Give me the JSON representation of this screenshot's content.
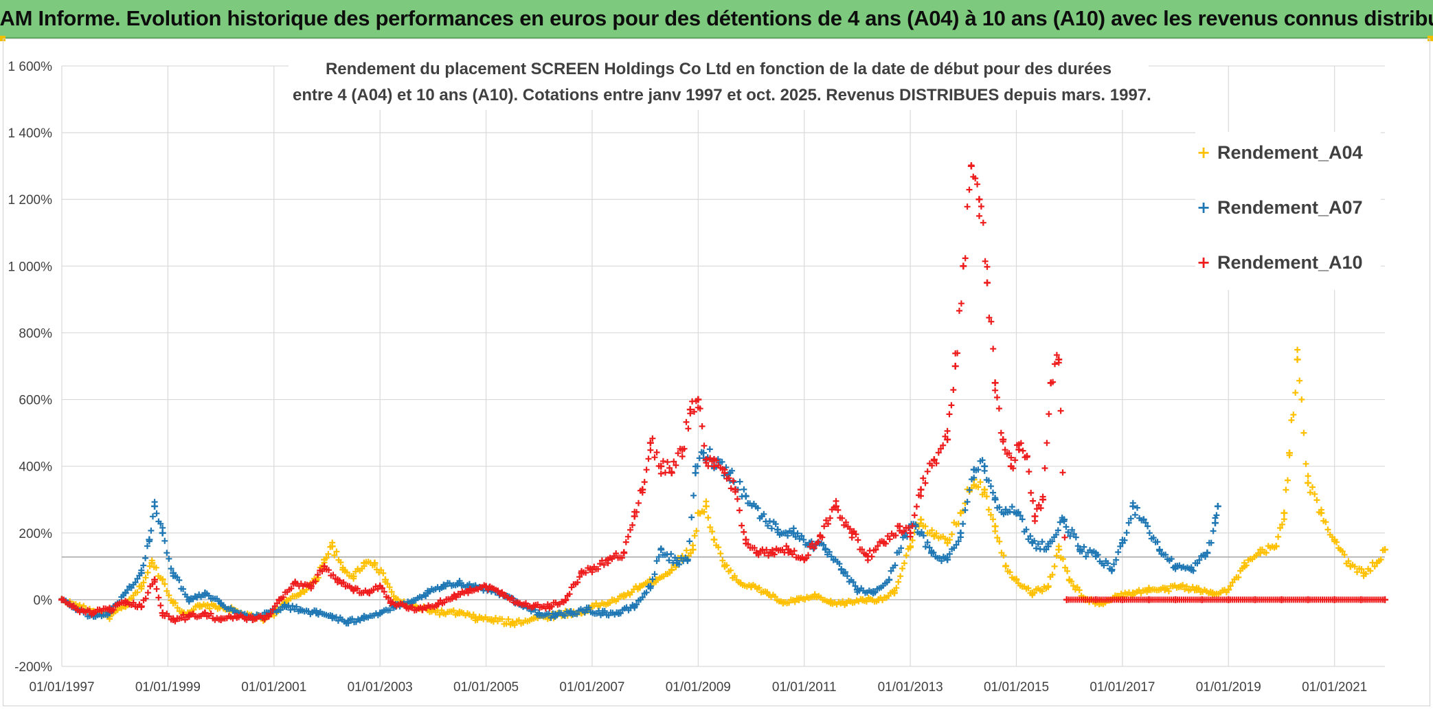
{
  "header": {
    "title": "ADAM Informe. Evolution historique des performances en euros pour des détentions de 4 ans (A04) à 10 ans (A10) avec les revenus connus distribués"
  },
  "chart_data": {
    "type": "scatter",
    "title_line1": "Rendement du placement SCREEN Holdings Co Ltd en fonction de la date de début pour des durées",
    "title_line2": "entre 4 (A04) et 10 ans (A10). Cotations entre janv 1997 et oct. 2025. Revenus DISTRIBUES depuis mars. 1997.",
    "xlabel": "",
    "ylabel": "",
    "x_range": [
      1997.0,
      2021.95
    ],
    "ylim": [
      -200,
      1600
    ],
    "y_ticks": [
      -200,
      0,
      200,
      400,
      600,
      800,
      1000,
      1200,
      1400,
      1600
    ],
    "y_tick_labels": [
      "-200%",
      "0%",
      "200%",
      "400%",
      "600%",
      "800%",
      "1 000%",
      "1 200%",
      "1 400%",
      "1 600%"
    ],
    "x_ticks": [
      1997,
      1999,
      2001,
      2003,
      2005,
      2007,
      2009,
      2011,
      2013,
      2015,
      2017,
      2019,
      2021
    ],
    "x_tick_labels": [
      "01/01/1997",
      "01/01/1999",
      "01/01/2001",
      "01/01/2003",
      "01/01/2005",
      "01/01/2007",
      "01/01/2009",
      "01/01/2011",
      "01/01/2013",
      "01/01/2015",
      "01/01/2017",
      "01/01/2019",
      "01/01/2021"
    ],
    "reference_line": 128,
    "legend_position": "top-right",
    "series": [
      {
        "name": "Rendement_A04",
        "color": "#ffc000",
        "x": [
          1997.0,
          1997.3,
          1997.6,
          1997.9,
          1998.2,
          1998.5,
          1998.7,
          1998.9,
          1999.1,
          1999.3,
          1999.6,
          1999.9,
          2000.2,
          2000.5,
          2000.8,
          2001.0,
          2001.2,
          2001.5,
          2001.8,
          2001.95,
          2002.1,
          2002.3,
          2002.5,
          2002.7,
          2002.9,
          2003.1,
          2003.3,
          2003.6,
          2003.9,
          2004.2,
          2004.5,
          2004.8,
          2005.1,
          2005.5,
          2005.9,
          2006.2,
          2006.5,
          2006.8,
          2007.0,
          2007.3,
          2007.6,
          2007.9,
          2008.2,
          2008.5,
          2008.7,
          2008.9,
          2009.0,
          2009.15,
          2009.3,
          2009.5,
          2009.8,
          2010.0,
          2010.3,
          2010.6,
          2010.9,
          2011.2,
          2011.5,
          2011.8,
          2012.1,
          2012.4,
          2012.7,
          2013.0,
          2013.2,
          2013.45,
          2013.7,
          2013.95,
          2014.2,
          2014.4,
          2014.6,
          2014.8,
          2015.0,
          2015.3,
          2015.6,
          2015.8,
          2016.0,
          2016.3,
          2016.6,
          2016.9,
          2017.2,
          2017.5,
          2017.8,
          2018.1,
          2018.4,
          2018.7,
          2019.0,
          2019.3,
          2019.6,
          2019.9,
          2020.05,
          2020.15,
          2020.3,
          2020.5,
          2020.75,
          2021.0,
          2021.3,
          2021.55,
          2021.8,
          2021.95
        ],
        "values": [
          0,
          -20,
          -35,
          -50,
          -20,
          40,
          110,
          60,
          -10,
          -40,
          -20,
          -20,
          -30,
          -50,
          -55,
          -40,
          -10,
          20,
          60,
          120,
          160,
          90,
          70,
          110,
          110,
          60,
          0,
          -20,
          -30,
          -40,
          -40,
          -55,
          -60,
          -70,
          -55,
          -50,
          -40,
          -40,
          -20,
          -10,
          10,
          40,
          60,
          90,
          130,
          150,
          260,
          280,
          180,
          100,
          50,
          40,
          20,
          -10,
          0,
          10,
          -10,
          -10,
          0,
          0,
          20,
          160,
          240,
          190,
          170,
          260,
          360,
          330,
          220,
          100,
          60,
          20,
          40,
          150,
          60,
          0,
          -10,
          10,
          20,
          30,
          30,
          40,
          30,
          20,
          30,
          100,
          140,
          160,
          260,
          440,
          720,
          350,
          260,
          180,
          100,
          80,
          110,
          150
        ]
      },
      {
        "name": "Rendement_A07",
        "color": "#1f77b4",
        "x": [
          1997.0,
          1997.3,
          1997.6,
          1997.9,
          1998.2,
          1998.5,
          1998.65,
          1998.75,
          1998.9,
          1999.1,
          1999.4,
          1999.7,
          2000.0,
          2000.3,
          2000.6,
          2000.9,
          2001.2,
          2001.5,
          2001.8,
          2002.1,
          2002.4,
          2002.7,
          2003.0,
          2003.3,
          2003.6,
          2003.9,
          2004.2,
          2004.5,
          2004.8,
          2005.1,
          2005.4,
          2005.7,
          2006.0,
          2006.3,
          2006.6,
          2006.9,
          2007.2,
          2007.5,
          2007.8,
          2008.1,
          2008.3,
          2008.6,
          2008.8,
          2008.95,
          2009.1,
          2009.3,
          2009.6,
          2009.9,
          2010.2,
          2010.5,
          2010.8,
          2011.1,
          2011.4,
          2011.7,
          2012.0,
          2012.3,
          2012.6,
          2012.9,
          2013.1,
          2013.4,
          2013.7,
          2013.95,
          2014.2,
          2014.4,
          2014.6,
          2014.8,
          2015.0,
          2015.3,
          2015.6,
          2015.9,
          2016.2,
          2016.5,
          2016.8,
          2017.0,
          2017.2,
          2017.4,
          2017.7,
          2018.0,
          2018.3,
          2018.6,
          2018.75,
          2018.8
        ],
        "values": [
          0,
          -30,
          -50,
          -40,
          20,
          80,
          180,
          280,
          200,
          80,
          0,
          20,
          -10,
          -40,
          -50,
          -40,
          -20,
          -30,
          -40,
          -50,
          -70,
          -50,
          -40,
          -20,
          -10,
          20,
          40,
          50,
          40,
          30,
          10,
          -20,
          -40,
          -50,
          -40,
          -30,
          -40,
          -40,
          -20,
          40,
          150,
          110,
          120,
          380,
          440,
          420,
          380,
          310,
          250,
          210,
          200,
          170,
          150,
          90,
          30,
          20,
          60,
          200,
          220,
          140,
          120,
          200,
          390,
          400,
          300,
          270,
          260,
          170,
          160,
          240,
          150,
          130,
          90,
          170,
          280,
          240,
          150,
          100,
          90,
          140,
          230,
          280
        ]
      },
      {
        "name": "Rendement_A10",
        "color": "#ee1c1c",
        "x": [
          1997.0,
          1997.3,
          1997.6,
          1997.9,
          1998.2,
          1998.5,
          1998.75,
          1998.9,
          1999.1,
          1999.4,
          1999.7,
          2000.0,
          2000.3,
          2000.6,
          2000.9,
          2001.1,
          2001.4,
          2001.7,
          2001.95,
          2002.2,
          2002.5,
          2002.8,
          2003.0,
          2003.2,
          2003.5,
          2003.8,
          2004.1,
          2004.4,
          2004.7,
          2005.0,
          2005.3,
          2005.6,
          2005.9,
          2006.2,
          2006.5,
          2006.8,
          2007.0,
          2007.3,
          2007.6,
          2007.8,
          2007.95,
          2008.1,
          2008.3,
          2008.5,
          2008.7,
          2008.85,
          2009.0,
          2009.15,
          2009.3,
          2009.5,
          2009.7,
          2009.9,
          2010.1,
          2010.4,
          2010.7,
          2011.0,
          2011.3,
          2011.6,
          2011.9,
          2012.2,
          2012.5,
          2012.8,
          2013.0,
          2013.2,
          2013.45,
          2013.7,
          2013.85,
          2014.0,
          2014.15,
          2014.3,
          2014.45,
          2014.6,
          2014.75,
          2014.9,
          2015.05,
          2015.2,
          2015.35,
          2015.5,
          2015.65,
          2015.8,
          2015.95,
          2016.5,
          2017.0,
          2017.5,
          2018.0,
          2018.5,
          2019.0,
          2019.5,
          2020.0,
          2020.5,
          2021.0,
          2021.5,
          2021.95
        ],
        "values": [
          0,
          -30,
          -40,
          -30,
          -10,
          -20,
          60,
          -40,
          -60,
          -50,
          -40,
          -60,
          -50,
          -60,
          -50,
          0,
          50,
          40,
          100,
          60,
          30,
          20,
          40,
          -10,
          -20,
          -30,
          -10,
          10,
          30,
          40,
          20,
          -10,
          -20,
          -20,
          0,
          80,
          90,
          120,
          140,
          250,
          330,
          470,
          400,
          380,
          450,
          570,
          600,
          420,
          400,
          380,
          330,
          180,
          140,
          140,
          150,
          120,
          190,
          280,
          200,
          130,
          170,
          220,
          200,
          330,
          420,
          480,
          700,
          1000,
          1300,
          1200,
          950,
          650,
          480,
          400,
          450,
          430,
          250,
          300,
          650,
          720,
          0,
          0,
          0,
          0,
          0,
          0,
          0,
          0,
          0,
          0,
          0,
          0,
          0
        ]
      }
    ]
  }
}
